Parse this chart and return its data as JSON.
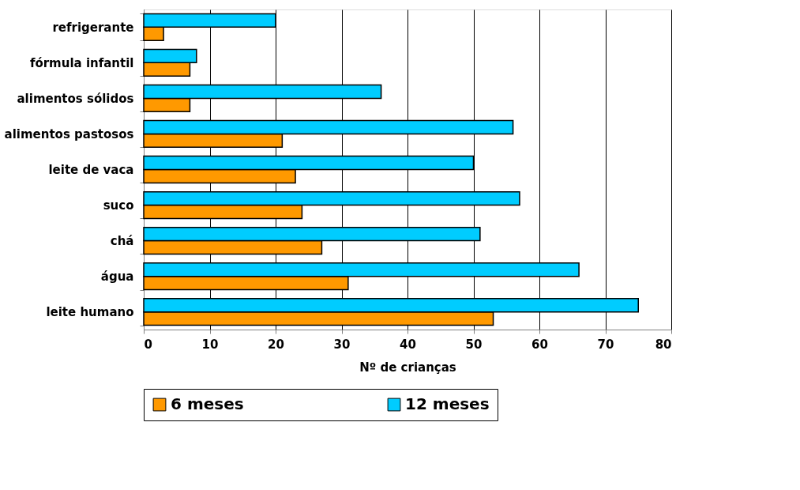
{
  "chart_data": {
    "type": "bar",
    "orientation": "horizontal",
    "xlabel": "Nº de crianças",
    "categories": [
      "refrigerante",
      "fórmula infantil",
      "alimentos sólidos",
      "alimentos pastosos",
      "leite de vaca",
      "suco",
      "chá",
      "água",
      "leite humano"
    ],
    "series": [
      {
        "name": "6 meses",
        "color": "#ff9900",
        "values": [
          3,
          7,
          7,
          21,
          23,
          24,
          27,
          31,
          53
        ]
      },
      {
        "name": "12 meses",
        "color": "#00ccff",
        "values": [
          20,
          8,
          36,
          56,
          50,
          57,
          51,
          66,
          75
        ]
      }
    ],
    "xlim": [
      0,
      80
    ],
    "xticks": [
      0,
      10,
      20,
      30,
      40,
      50,
      60,
      70,
      80
    ],
    "grid": "x",
    "legend": "bottom"
  }
}
